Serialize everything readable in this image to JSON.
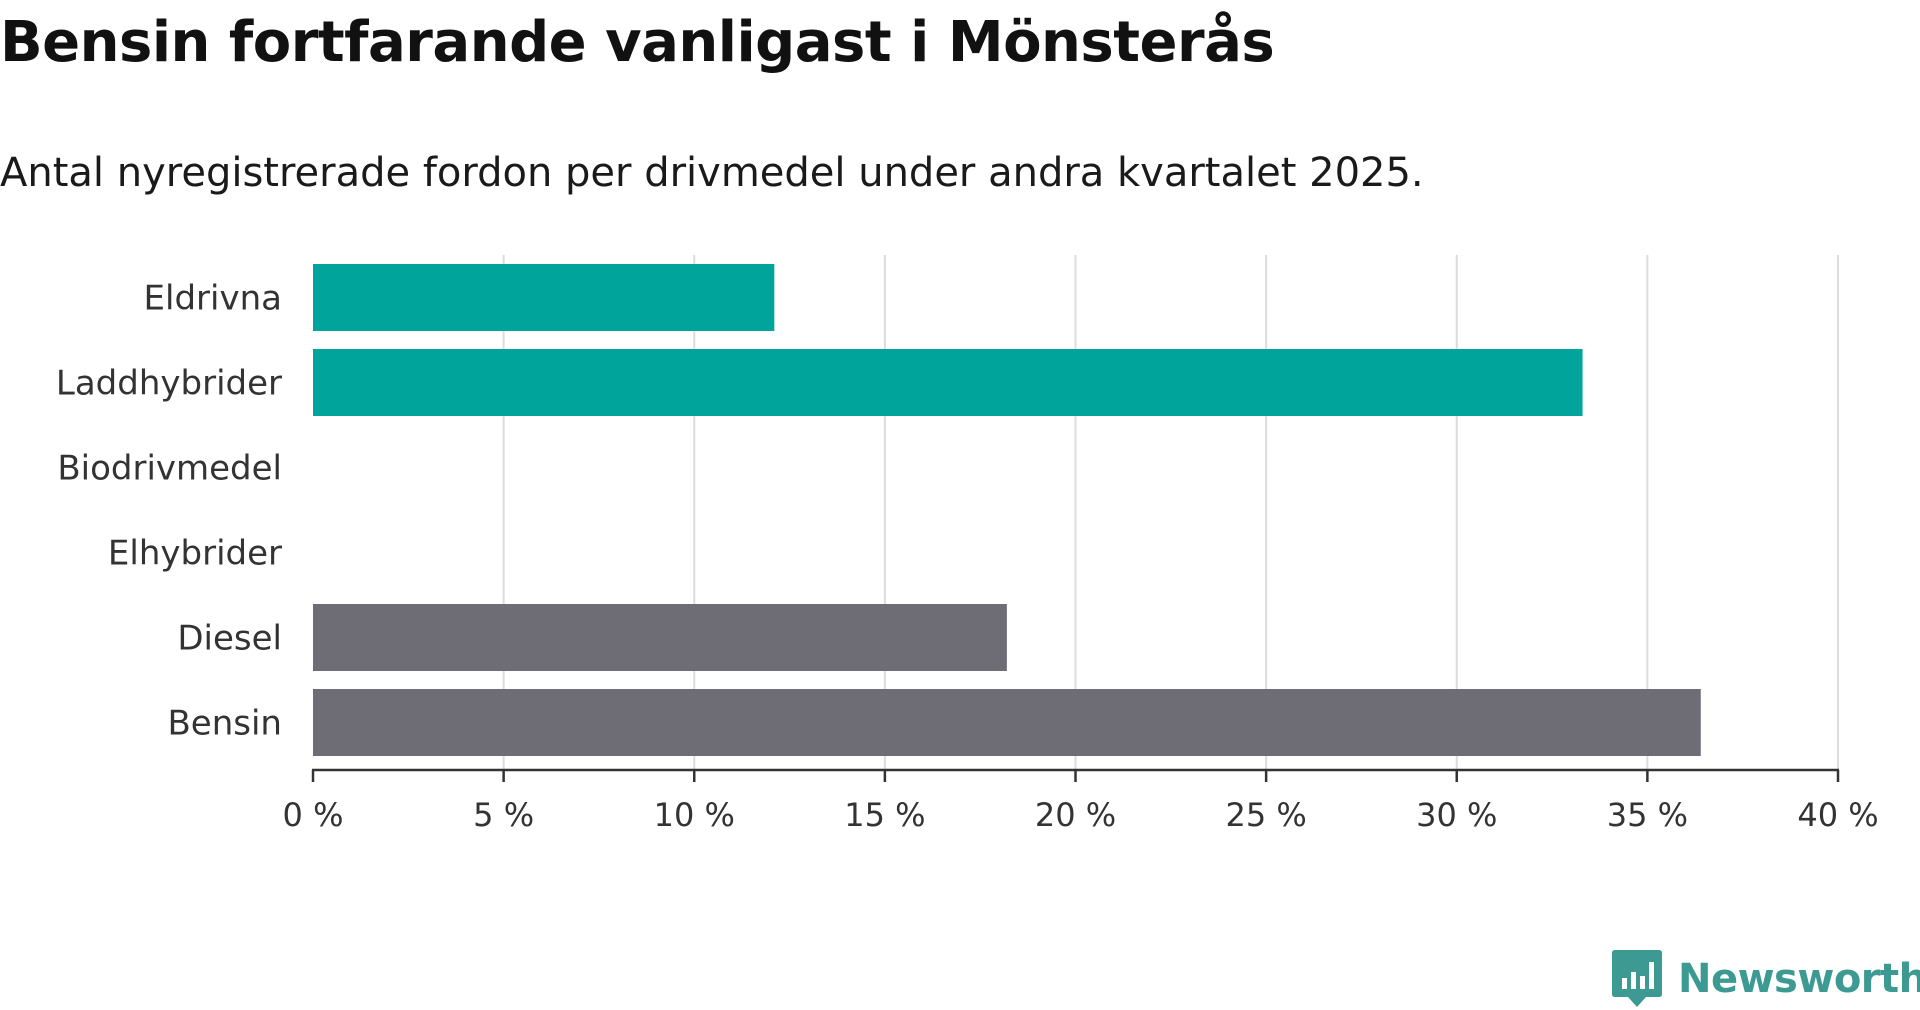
{
  "header": {
    "title": "Bensin fortfarande vanligast i Mönsterås",
    "subtitle": "Antal nyregistrerade fordon per drivmedel under andra kvartalet 2025."
  },
  "chart_data": {
    "type": "bar",
    "orientation": "horizontal",
    "categories": [
      "Eldrivna",
      "Laddhybrider",
      "Biodrivmedel",
      "Elhybrider",
      "Diesel",
      "Bensin"
    ],
    "values": [
      12.1,
      33.3,
      0,
      0,
      18.2,
      36.4
    ],
    "bar_colors": [
      "#00a49a",
      "#00a49a",
      "#00a49a",
      "#00a49a",
      "#6e6d75",
      "#6e6d75"
    ],
    "xlim": [
      0,
      40
    ],
    "xticks": [
      0,
      5,
      10,
      15,
      20,
      25,
      30,
      35,
      40
    ],
    "xtick_labels": [
      "0 %",
      "5 %",
      "10 %",
      "15 %",
      "20 %",
      "25 %",
      "30 %",
      "35 %",
      "40 %"
    ],
    "grid": true,
    "title": "Bensin fortfarande vanligast i Mönsterås",
    "subtitle": "Antal nyregistrerade fordon per drivmedel under andra kvartalet 2025."
  },
  "brand": {
    "name": "Newsworthy",
    "icon": "bar-chart-icon",
    "color": "#3d9a92"
  },
  "colors": {
    "grid": "#dcdcdc",
    "axis": "#333333"
  }
}
